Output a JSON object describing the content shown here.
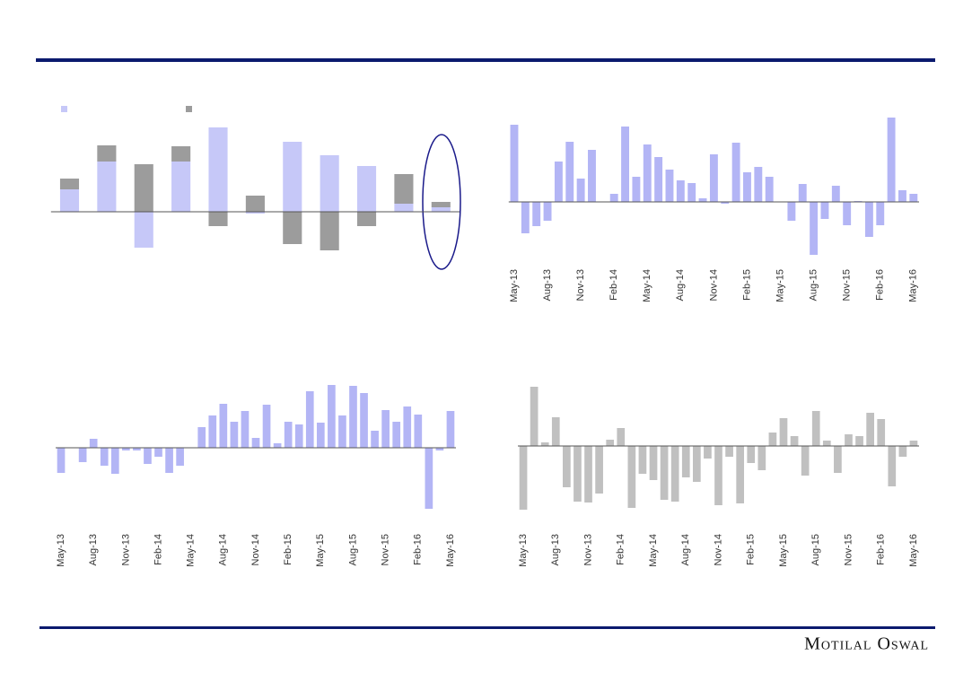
{
  "chart_data": [
    {
      "type": "bar",
      "stacked": true,
      "categories": [
        null,
        null,
        null,
        null,
        null,
        null,
        null,
        null,
        null,
        null,
        null
      ],
      "series": [
        {
          "color": "#c6c8f8",
          "values": [
            25,
            56,
            -40,
            56,
            94,
            -2,
            78,
            63,
            51,
            9,
            5
          ]
        },
        {
          "color": "#9c9c9c",
          "values": [
            12,
            18,
            53,
            17,
            -16,
            18,
            -36,
            -43,
            -16,
            33,
            6
          ]
        }
      ],
      "ylim": [
        -50,
        100
      ]
    },
    {
      "type": "bar",
      "color": "#b3b5f5",
      "categories": [
        "May-13",
        null,
        null,
        "Aug-13",
        null,
        null,
        "Nov-13",
        null,
        null,
        "Feb-14",
        null,
        null,
        "May-14",
        null,
        null,
        "Aug-14",
        null,
        null,
        "Nov-14",
        null,
        null,
        "Feb-15",
        null,
        null,
        "May-15",
        null,
        null,
        "Aug-15",
        null,
        null,
        "Nov-15",
        null,
        null,
        "Feb-16",
        null,
        null,
        "May-16"
      ],
      "values": [
        86,
        -35,
        -27,
        -21,
        45,
        67,
        26,
        58,
        0,
        9,
        84,
        28,
        64,
        50,
        36,
        24,
        21,
        4,
        53,
        -2,
        66,
        33,
        39,
        28,
        0,
        -21,
        20,
        -59,
        -19,
        18,
        -26,
        1,
        -39,
        -26,
        94,
        13,
        9
      ],
      "ylim": [
        -70,
        100
      ]
    },
    {
      "type": "bar",
      "color": "#b3b5f5",
      "categories": [
        "May-13",
        null,
        null,
        "Aug-13",
        null,
        null,
        "Nov-13",
        null,
        null,
        "Feb-14",
        null,
        null,
        "May-14",
        null,
        null,
        "Aug-14",
        null,
        null,
        "Nov-14",
        null,
        null,
        "Feb-15",
        null,
        null,
        "May-15",
        null,
        null,
        "Aug-15",
        null,
        null,
        "Nov-15",
        null,
        null,
        "Feb-16",
        null,
        null,
        "May-16"
      ],
      "values": [
        -28,
        0,
        -16,
        10,
        -20,
        -29,
        -3,
        -3,
        -18,
        -10,
        -28,
        -20,
        0,
        23,
        36,
        49,
        29,
        41,
        11,
        48,
        5,
        29,
        26,
        63,
        28,
        70,
        36,
        69,
        61,
        19,
        42,
        29,
        46,
        37,
        -68,
        -3,
        41
      ],
      "ylim": [
        -75,
        75
      ]
    },
    {
      "type": "bar",
      "color": "#c0c0c0",
      "categories": [
        "May-13",
        null,
        null,
        "Aug-13",
        null,
        null,
        "Nov-13",
        null,
        null,
        "Feb-14",
        null,
        null,
        "May-14",
        null,
        null,
        "Aug-14",
        null,
        null,
        "Nov-14",
        null,
        null,
        "Feb-15",
        null,
        null,
        "May-15",
        null,
        null,
        "Aug-15",
        null,
        null,
        "Nov-15",
        null,
        null,
        "Feb-16",
        null,
        null,
        "May-16"
      ],
      "values": [
        -71,
        66,
        4,
        32,
        -46,
        -62,
        -63,
        -53,
        7,
        20,
        -69,
        -31,
        -38,
        -60,
        -62,
        -35,
        -40,
        -14,
        -66,
        -12,
        -64,
        -19,
        -27,
        15,
        31,
        11,
        -33,
        39,
        6,
        -30,
        13,
        11,
        37,
        30,
        -45,
        -12,
        6
      ],
      "ylim": [
        -80,
        75
      ]
    }
  ],
  "footer": "Motilal Oswal"
}
